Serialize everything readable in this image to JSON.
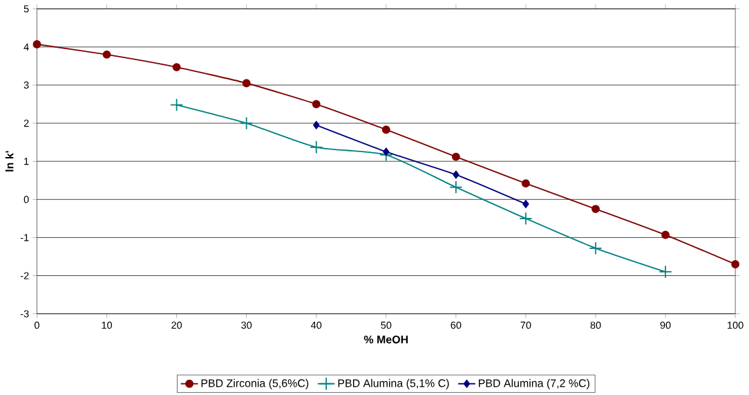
{
  "chart_data": {
    "type": "line",
    "xlabel": "% MeOH",
    "ylabel": "ln k'",
    "x": [
      0,
      10,
      20,
      30,
      40,
      50,
      60,
      70,
      80,
      90,
      100
    ],
    "series": [
      {
        "name": "PBD Zirconia (5,6%C)",
        "color": "#800000",
        "marker": "circle",
        "values": [
          4.07,
          3.8,
          3.47,
          3.05,
          2.5,
          1.83,
          1.12,
          0.42,
          -0.25,
          -0.93,
          -1.7
        ]
      },
      {
        "name": "PBD Alumina (5,1% C)",
        "color": "#008080",
        "marker": "cross",
        "values": [
          null,
          null,
          2.48,
          2.0,
          1.37,
          1.17,
          0.32,
          -0.5,
          -1.28,
          -1.9,
          null
        ]
      },
      {
        "name": "PBD Alumina (7,2 %C)",
        "color": "#000080",
        "marker": "diamond",
        "values": [
          null,
          null,
          null,
          null,
          1.95,
          1.25,
          0.65,
          -0.12,
          null,
          null,
          null
        ]
      }
    ],
    "xlim": [
      0,
      100
    ],
    "xticks": [
      0,
      10,
      20,
      30,
      40,
      50,
      60,
      70,
      80,
      90,
      100
    ],
    "ylim": [
      -3,
      5
    ],
    "yticks": [
      -3,
      -2,
      -1,
      0,
      1,
      2,
      3,
      4,
      5
    ],
    "grid": "y",
    "legend": "bottom",
    "line_style": "solid"
  }
}
